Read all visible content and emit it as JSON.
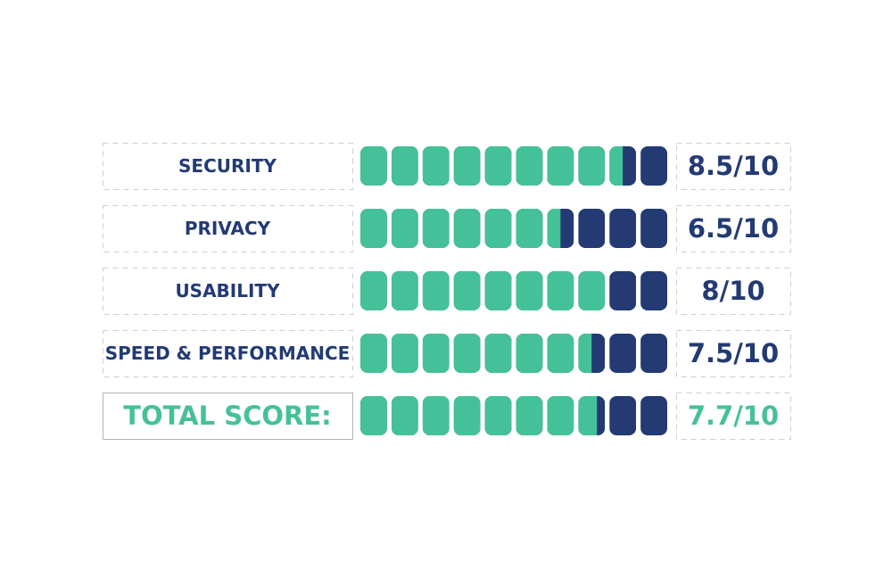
{
  "chart_data": {
    "type": "segmented-rating",
    "categories": [
      "SECURITY",
      "PRIVACY",
      "USABILITY",
      "SPEED & PERFORMANCE"
    ],
    "values": [
      8.5,
      6.5,
      8,
      7.5
    ],
    "value_labels": [
      "8.5/10",
      "6.5/10",
      "8/10",
      "7.5/10"
    ],
    "total": {
      "label": "TOTAL SCORE:",
      "value": 7.7,
      "value_label": "7.7/10"
    },
    "xlim": [
      0,
      10
    ],
    "fill_color": "#45c19a",
    "empty_color": "#233a73"
  }
}
